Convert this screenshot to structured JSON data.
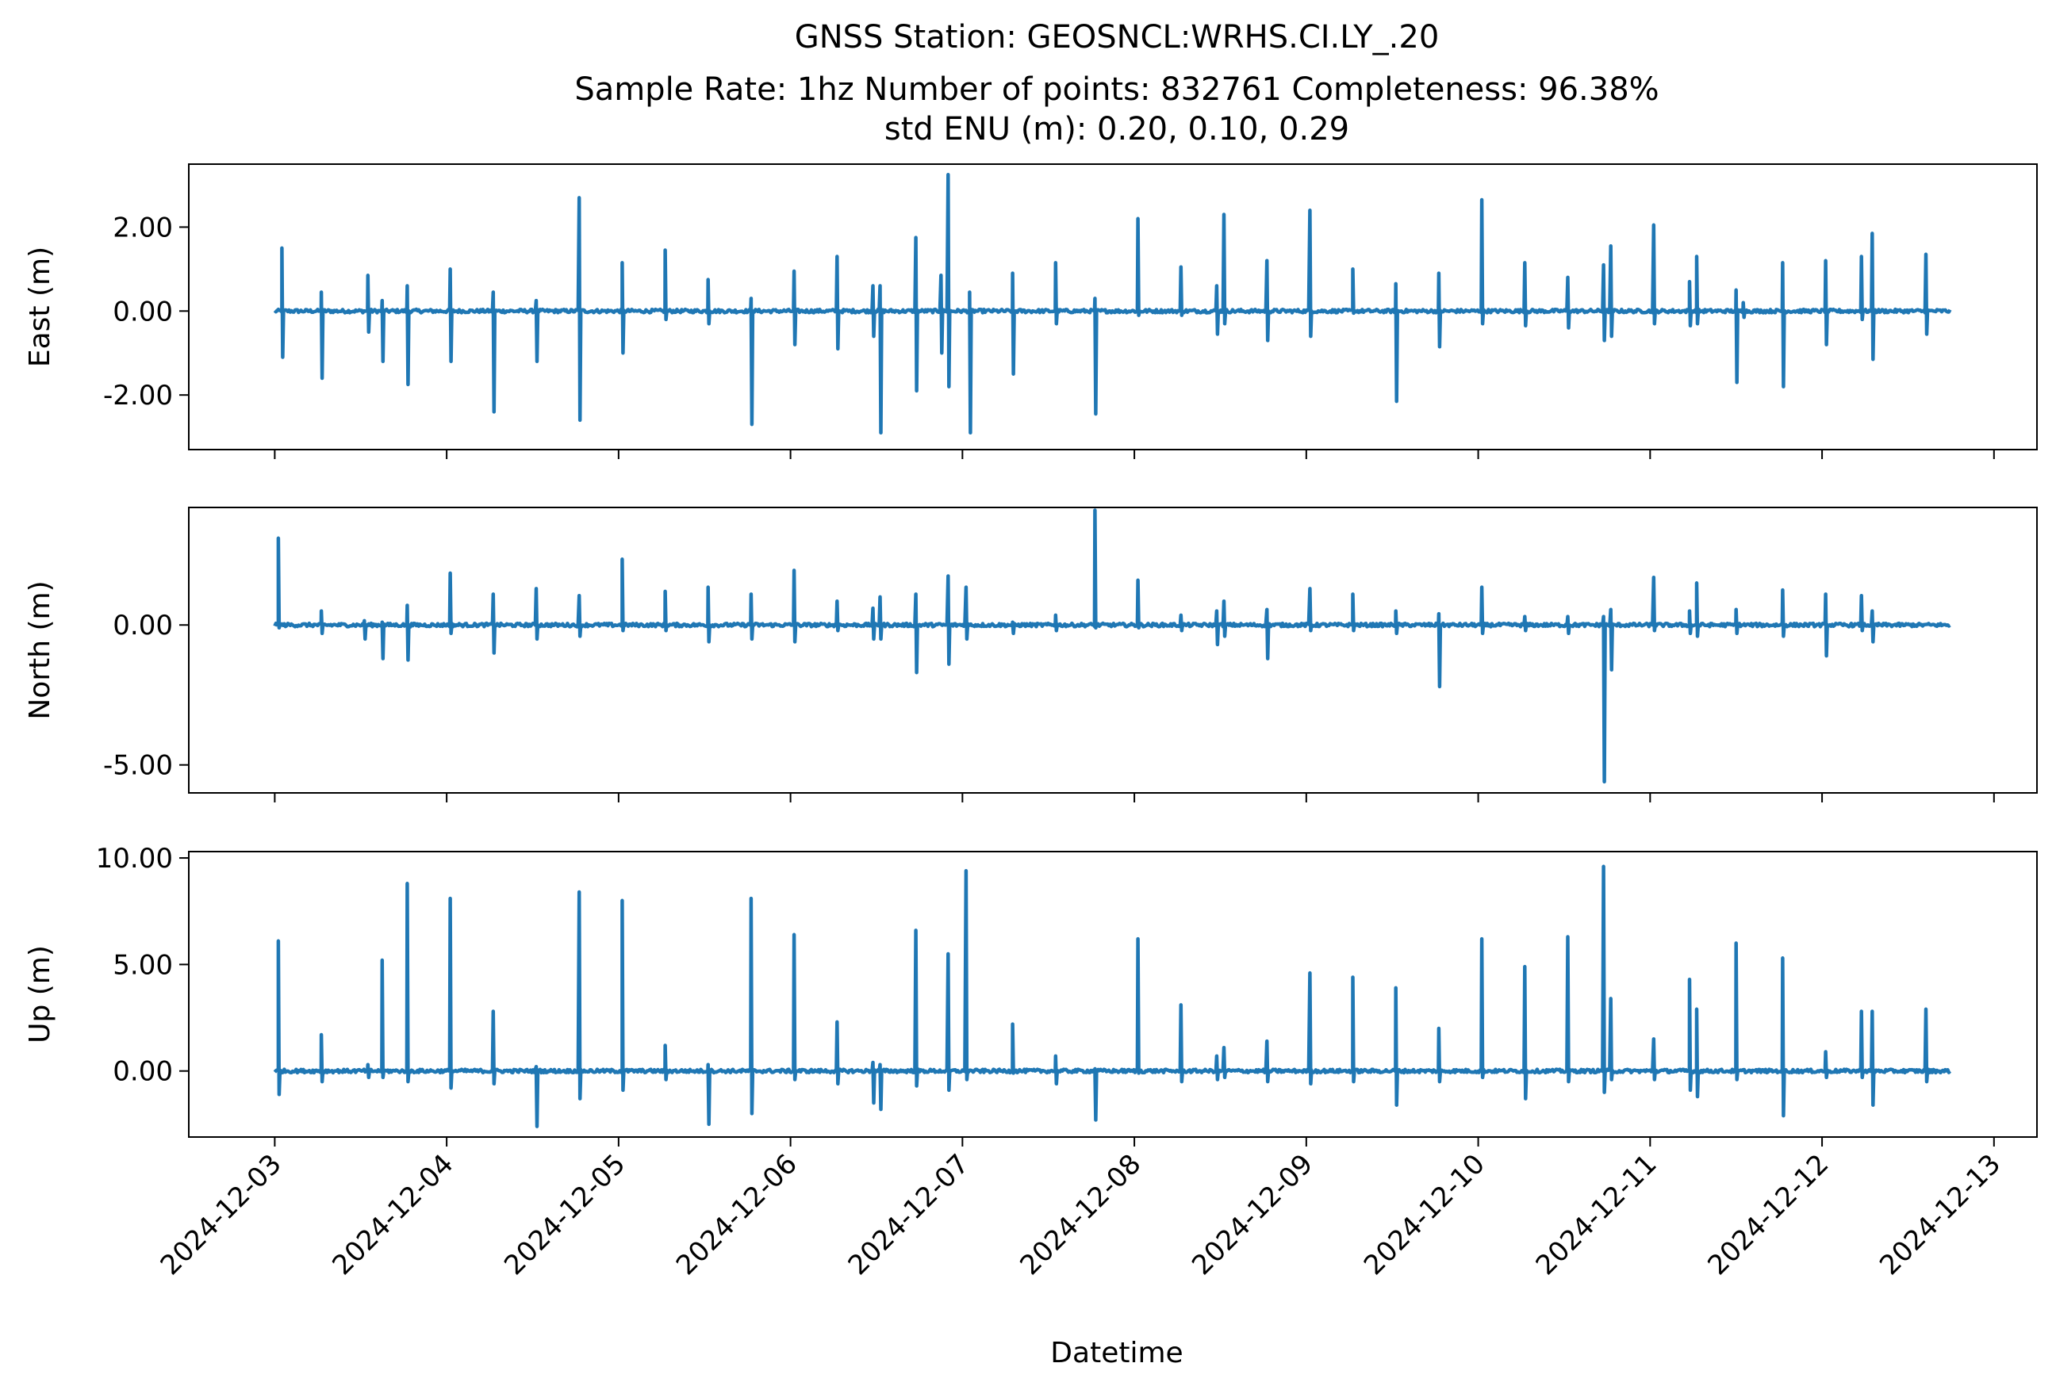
{
  "title_lines": [
    "GNSS Station: GEOSNCL:WRHS.CI.LY_.20",
    "Sample Rate: 1hz   Number of points: 832761    Completeness:  96.38%",
    "std ENU (m):  0.20, 0.10, 0.29"
  ],
  "colors": {
    "series": "#1f77b4"
  },
  "chart_data": {
    "type": "line",
    "xlabel": "Datetime",
    "x_range": [
      "2024-12-02T12:00",
      "2024-12-13T06:00"
    ],
    "x_ticks": [
      "2024-12-03",
      "2024-12-04",
      "2024-12-05",
      "2024-12-06",
      "2024-12-07",
      "2024-12-08",
      "2024-12-09",
      "2024-12-10",
      "2024-12-11",
      "2024-12-12",
      "2024-12-13"
    ],
    "data_start": "2024-12-03T00:00",
    "data_end": "2024-12-12T18:00",
    "panels": [
      {
        "ylabel": "East (m)",
        "ylim": [
          -3.3,
          3.5
        ],
        "yticks": [
          2.0,
          0.0,
          -2.0
        ],
        "ytick_labels": [
          "2.00",
          "0.00",
          "-2.00"
        ],
        "spikes": [
          {
            "t": "2024-12-03T01:00",
            "max": 1.5,
            "min": -1.1
          },
          {
            "t": "2024-12-03T06:30",
            "max": 0.45,
            "min": -1.6
          },
          {
            "t": "2024-12-03T13:00",
            "max": 0.85,
            "min": -0.5
          },
          {
            "t": "2024-12-03T15:00",
            "max": 0.25,
            "min": -1.2
          },
          {
            "t": "2024-12-03T18:30",
            "max": 0.6,
            "min": -1.75
          },
          {
            "t": "2024-12-04T00:30",
            "max": 1.0,
            "min": -1.2
          },
          {
            "t": "2024-12-04T06:30",
            "max": 0.45,
            "min": -2.4
          },
          {
            "t": "2024-12-04T12:30",
            "max": 0.25,
            "min": -1.2
          },
          {
            "t": "2024-12-04T18:30",
            "max": 2.7,
            "min": -2.6
          },
          {
            "t": "2024-12-05T00:30",
            "max": 1.15,
            "min": -1.0
          },
          {
            "t": "2024-12-05T06:30",
            "max": 1.45,
            "min": -0.2
          },
          {
            "t": "2024-12-05T12:30",
            "max": 0.75,
            "min": -0.3
          },
          {
            "t": "2024-12-05T18:30",
            "max": 0.3,
            "min": -2.7
          },
          {
            "t": "2024-12-06T00:30",
            "max": 0.95,
            "min": -0.8
          },
          {
            "t": "2024-12-06T06:30",
            "max": 1.3,
            "min": -0.9
          },
          {
            "t": "2024-12-06T11:30",
            "max": 0.6,
            "min": -0.6
          },
          {
            "t": "2024-12-06T12:30",
            "max": 0.6,
            "min": -2.9
          },
          {
            "t": "2024-12-06T17:30",
            "max": 1.75,
            "min": -1.9
          },
          {
            "t": "2024-12-06T21:00",
            "max": 0.85,
            "min": -1.0
          },
          {
            "t": "2024-12-06T22:00",
            "max": 3.25,
            "min": -1.8
          },
          {
            "t": "2024-12-07T01:00",
            "max": 0.45,
            "min": -2.9
          },
          {
            "t": "2024-12-07T07:00",
            "max": 0.9,
            "min": -1.5
          },
          {
            "t": "2024-12-07T13:00",
            "max": 1.15,
            "min": -0.3
          },
          {
            "t": "2024-12-07T18:30",
            "max": 0.3,
            "min": -2.45
          },
          {
            "t": "2024-12-08T00:30",
            "max": 2.2,
            "min": -0.1
          },
          {
            "t": "2024-12-08T06:30",
            "max": 1.05,
            "min": -0.1
          },
          {
            "t": "2024-12-08T11:30",
            "max": 0.6,
            "min": -0.55
          },
          {
            "t": "2024-12-08T12:30",
            "max": 2.3,
            "min": -0.3
          },
          {
            "t": "2024-12-08T18:30",
            "max": 1.2,
            "min": -0.7
          },
          {
            "t": "2024-12-09T00:30",
            "max": 2.4,
            "min": -0.6
          },
          {
            "t": "2024-12-09T06:30",
            "max": 1.0,
            "min": -0.05
          },
          {
            "t": "2024-12-09T12:30",
            "max": 0.65,
            "min": -2.15
          },
          {
            "t": "2024-12-09T18:30",
            "max": 0.9,
            "min": -0.85
          },
          {
            "t": "2024-12-10T00:30",
            "max": 2.65,
            "min": -0.3
          },
          {
            "t": "2024-12-10T06:30",
            "max": 1.15,
            "min": -0.35
          },
          {
            "t": "2024-12-10T12:30",
            "max": 0.8,
            "min": -0.4
          },
          {
            "t": "2024-12-10T17:30",
            "max": 1.1,
            "min": -0.7
          },
          {
            "t": "2024-12-10T18:30",
            "max": 1.55,
            "min": -0.6
          },
          {
            "t": "2024-12-11T00:30",
            "max": 2.05,
            "min": -0.3
          },
          {
            "t": "2024-12-11T05:30",
            "max": 0.7,
            "min": -0.35
          },
          {
            "t": "2024-12-11T06:30",
            "max": 1.3,
            "min": -0.3
          },
          {
            "t": "2024-12-11T12:00",
            "max": 0.5,
            "min": -1.7
          },
          {
            "t": "2024-12-11T13:00",
            "max": 0.2,
            "min": -0.15
          },
          {
            "t": "2024-12-11T18:30",
            "max": 1.15,
            "min": -1.8
          },
          {
            "t": "2024-12-12T00:30",
            "max": 1.2,
            "min": -0.8
          },
          {
            "t": "2024-12-12T05:30",
            "max": 1.3,
            "min": -0.2
          },
          {
            "t": "2024-12-12T07:00",
            "max": 1.85,
            "min": -1.15
          },
          {
            "t": "2024-12-12T14:30",
            "max": 1.35,
            "min": -0.55
          }
        ]
      },
      {
        "ylabel": "North (m)",
        "ylim": [
          -6.0,
          4.2
        ],
        "yticks": [
          0.0,
          -5.0
        ],
        "ytick_labels": [
          "0.00",
          "-5.00"
        ],
        "spikes": [
          {
            "t": "2024-12-03T00:30",
            "max": 3.1,
            "min": -0.1
          },
          {
            "t": "2024-12-03T06:30",
            "max": 0.5,
            "min": -0.3
          },
          {
            "t": "2024-12-03T12:30",
            "max": 0.15,
            "min": -0.5
          },
          {
            "t": "2024-12-03T15:00",
            "max": 0.1,
            "min": -1.2
          },
          {
            "t": "2024-12-03T18:30",
            "max": 0.7,
            "min": -1.25
          },
          {
            "t": "2024-12-04T00:30",
            "max": 1.85,
            "min": -0.3
          },
          {
            "t": "2024-12-04T06:30",
            "max": 1.1,
            "min": -1.0
          },
          {
            "t": "2024-12-04T12:30",
            "max": 1.3,
            "min": -0.5
          },
          {
            "t": "2024-12-04T18:30",
            "max": 1.05,
            "min": -0.4
          },
          {
            "t": "2024-12-05T00:30",
            "max": 2.35,
            "min": -0.2
          },
          {
            "t": "2024-12-05T06:30",
            "max": 1.2,
            "min": -0.2
          },
          {
            "t": "2024-12-05T12:30",
            "max": 1.35,
            "min": -0.6
          },
          {
            "t": "2024-12-05T18:30",
            "max": 1.1,
            "min": -0.5
          },
          {
            "t": "2024-12-06T00:30",
            "max": 1.95,
            "min": -0.6
          },
          {
            "t": "2024-12-06T06:30",
            "max": 0.85,
            "min": -0.2
          },
          {
            "t": "2024-12-06T11:30",
            "max": 0.6,
            "min": -0.5
          },
          {
            "t": "2024-12-06T12:30",
            "max": 1.0,
            "min": -0.5
          },
          {
            "t": "2024-12-06T17:30",
            "max": 1.1,
            "min": -1.7
          },
          {
            "t": "2024-12-06T22:00",
            "max": 1.75,
            "min": -1.4
          },
          {
            "t": "2024-12-07T00:30",
            "max": 1.35,
            "min": -0.5
          },
          {
            "t": "2024-12-07T07:00",
            "max": 0.1,
            "min": -0.3
          },
          {
            "t": "2024-12-07T13:00",
            "max": 0.35,
            "min": -0.2
          },
          {
            "t": "2024-12-07T18:30",
            "max": 4.1,
            "min": -0.1
          },
          {
            "t": "2024-12-08T00:30",
            "max": 1.6,
            "min": -0.1
          },
          {
            "t": "2024-12-08T06:30",
            "max": 0.35,
            "min": -0.2
          },
          {
            "t": "2024-12-08T11:30",
            "max": 0.5,
            "min": -0.7
          },
          {
            "t": "2024-12-08T12:30",
            "max": 0.85,
            "min": -0.4
          },
          {
            "t": "2024-12-08T18:30",
            "max": 0.55,
            "min": -1.2
          },
          {
            "t": "2024-12-09T00:30",
            "max": 1.3,
            "min": -0.2
          },
          {
            "t": "2024-12-09T06:30",
            "max": 1.1,
            "min": -0.2
          },
          {
            "t": "2024-12-09T12:30",
            "max": 0.5,
            "min": -0.3
          },
          {
            "t": "2024-12-09T18:30",
            "max": 0.4,
            "min": -2.2
          },
          {
            "t": "2024-12-10T00:30",
            "max": 1.35,
            "min": -0.3
          },
          {
            "t": "2024-12-10T06:30",
            "max": 0.3,
            "min": -0.2
          },
          {
            "t": "2024-12-10T12:30",
            "max": 0.3,
            "min": -0.3
          },
          {
            "t": "2024-12-10T17:30",
            "max": 0.3,
            "min": -5.6
          },
          {
            "t": "2024-12-10T18:30",
            "max": 0.55,
            "min": -1.6
          },
          {
            "t": "2024-12-11T00:30",
            "max": 1.7,
            "min": -0.2
          },
          {
            "t": "2024-12-11T05:30",
            "max": 0.5,
            "min": -0.3
          },
          {
            "t": "2024-12-11T06:30",
            "max": 1.5,
            "min": -0.4
          },
          {
            "t": "2024-12-11T12:00",
            "max": 0.55,
            "min": -0.3
          },
          {
            "t": "2024-12-11T18:30",
            "max": 1.25,
            "min": -0.4
          },
          {
            "t": "2024-12-12T00:30",
            "max": 1.1,
            "min": -1.1
          },
          {
            "t": "2024-12-12T05:30",
            "max": 1.05,
            "min": -0.2
          },
          {
            "t": "2024-12-12T07:00",
            "max": 0.5,
            "min": -0.6
          }
        ]
      },
      {
        "ylabel": "Up (m)",
        "ylim": [
          -3.1,
          10.3
        ],
        "yticks": [
          10.0,
          5.0,
          0.0
        ],
        "ytick_labels": [
          "10.00",
          "5.00",
          "0.00"
        ],
        "spikes": [
          {
            "t": "2024-12-03T00:30",
            "max": 6.1,
            "min": -1.1
          },
          {
            "t": "2024-12-03T06:30",
            "max": 1.7,
            "min": -0.5
          },
          {
            "t": "2024-12-03T13:00",
            "max": 0.3,
            "min": -0.3
          },
          {
            "t": "2024-12-03T15:00",
            "max": 5.2,
            "min": -0.3
          },
          {
            "t": "2024-12-03T18:30",
            "max": 8.8,
            "min": -0.5
          },
          {
            "t": "2024-12-04T00:30",
            "max": 8.1,
            "min": -0.8
          },
          {
            "t": "2024-12-04T06:30",
            "max": 2.8,
            "min": -0.6
          },
          {
            "t": "2024-12-04T12:30",
            "max": 0.2,
            "min": -2.6
          },
          {
            "t": "2024-12-04T18:30",
            "max": 8.4,
            "min": -1.3
          },
          {
            "t": "2024-12-05T00:30",
            "max": 8.0,
            "min": -0.9
          },
          {
            "t": "2024-12-05T06:30",
            "max": 1.2,
            "min": -0.4
          },
          {
            "t": "2024-12-05T12:30",
            "max": 0.3,
            "min": -2.5
          },
          {
            "t": "2024-12-05T18:30",
            "max": 8.1,
            "min": -2.0
          },
          {
            "t": "2024-12-06T00:30",
            "max": 6.4,
            "min": -0.4
          },
          {
            "t": "2024-12-06T06:30",
            "max": 2.3,
            "min": -0.6
          },
          {
            "t": "2024-12-06T11:30",
            "max": 0.4,
            "min": -1.5
          },
          {
            "t": "2024-12-06T12:30",
            "max": 0.3,
            "min": -1.8
          },
          {
            "t": "2024-12-06T17:30",
            "max": 6.6,
            "min": -0.7
          },
          {
            "t": "2024-12-06T22:00",
            "max": 5.5,
            "min": -0.9
          },
          {
            "t": "2024-12-07T00:30",
            "max": 9.4,
            "min": -0.4
          },
          {
            "t": "2024-12-07T07:00",
            "max": 2.2,
            "min": -0.1
          },
          {
            "t": "2024-12-07T13:00",
            "max": 0.7,
            "min": -0.6
          },
          {
            "t": "2024-12-07T18:30",
            "max": 0.1,
            "min": -2.3
          },
          {
            "t": "2024-12-08T00:30",
            "max": 6.2,
            "min": -0.1
          },
          {
            "t": "2024-12-08T06:30",
            "max": 3.1,
            "min": -0.5
          },
          {
            "t": "2024-12-08T11:30",
            "max": 0.7,
            "min": -0.4
          },
          {
            "t": "2024-12-08T12:30",
            "max": 1.1,
            "min": -0.3
          },
          {
            "t": "2024-12-08T18:30",
            "max": 1.4,
            "min": -0.5
          },
          {
            "t": "2024-12-09T00:30",
            "max": 4.6,
            "min": -0.6
          },
          {
            "t": "2024-12-09T06:30",
            "max": 4.4,
            "min": -0.5
          },
          {
            "t": "2024-12-09T12:30",
            "max": 3.9,
            "min": -1.6
          },
          {
            "t": "2024-12-09T18:30",
            "max": 2.0,
            "min": -0.5
          },
          {
            "t": "2024-12-10T00:30",
            "max": 6.2,
            "min": -0.3
          },
          {
            "t": "2024-12-10T06:30",
            "max": 4.9,
            "min": -1.3
          },
          {
            "t": "2024-12-10T12:30",
            "max": 6.3,
            "min": -0.5
          },
          {
            "t": "2024-12-10T17:30",
            "max": 9.6,
            "min": -1.0
          },
          {
            "t": "2024-12-10T18:30",
            "max": 3.4,
            "min": -0.4
          },
          {
            "t": "2024-12-11T00:30",
            "max": 1.5,
            "min": -0.4
          },
          {
            "t": "2024-12-11T05:30",
            "max": 4.3,
            "min": -0.9
          },
          {
            "t": "2024-12-11T06:30",
            "max": 2.9,
            "min": -1.2
          },
          {
            "t": "2024-12-11T12:00",
            "max": 6.0,
            "min": -0.4
          },
          {
            "t": "2024-12-11T18:30",
            "max": 5.3,
            "min": -2.1
          },
          {
            "t": "2024-12-12T00:30",
            "max": 0.9,
            "min": -0.3
          },
          {
            "t": "2024-12-12T05:30",
            "max": 2.8,
            "min": -0.3
          },
          {
            "t": "2024-12-12T07:00",
            "max": 2.8,
            "min": -1.6
          },
          {
            "t": "2024-12-12T14:30",
            "max": 2.9,
            "min": -0.5
          }
        ]
      }
    ]
  }
}
